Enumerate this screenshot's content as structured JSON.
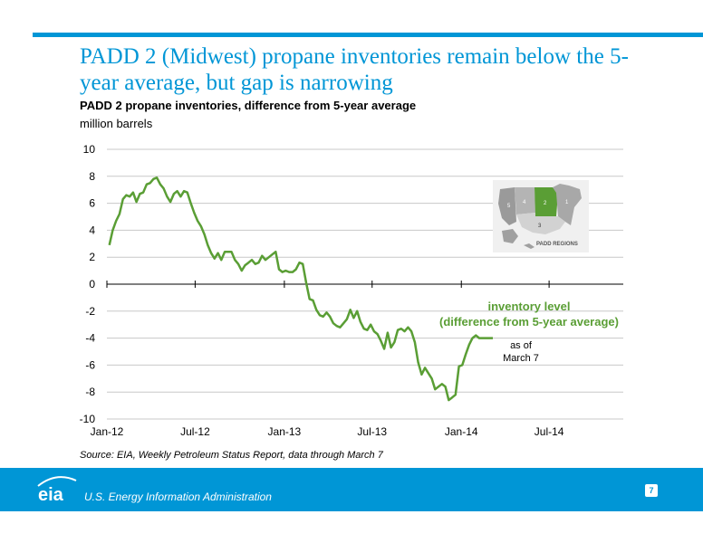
{
  "slide": {
    "title": "PADD 2 (Midwest) propane inventories remain below the 5-year average, but gap is narrowing",
    "source": "Source: EIA, Weekly Petroleum Status Report, data through March 7",
    "footer_agency": "U.S. Energy Information Administration",
    "page_number": "7",
    "logo_text": "eia"
  },
  "map_inset": {
    "label": "PADD REGIONS",
    "regions": [
      {
        "number": "1"
      },
      {
        "number": "2"
      },
      {
        "number": "3"
      },
      {
        "number": "4"
      },
      {
        "number": "5"
      }
    ]
  },
  "colors": {
    "accent": "#0096d6",
    "series": "#5a9e35",
    "grid": "#c8c8c8"
  },
  "chart_data": {
    "type": "line",
    "title": "PADD 2 propane inventories, difference from 5-year average",
    "ylabel": "million barrels",
    "ylim": [
      -10,
      10
    ],
    "yticks": [
      "10",
      "8",
      "6",
      "4",
      "2",
      "0",
      "-2",
      "-4",
      "-6",
      "-8",
      "-10"
    ],
    "xlim": [
      "2012-01",
      "2014-12"
    ],
    "xticks": [
      {
        "label": "Jan-12",
        "date": "2012-01"
      },
      {
        "label": "Jul-12",
        "date": "2012-07"
      },
      {
        "label": "Jan-13",
        "date": "2013-01"
      },
      {
        "label": "Jul-13",
        "date": "2013-07"
      },
      {
        "label": "Jan-14",
        "date": "2014-01"
      },
      {
        "label": "Jul-14",
        "date": "2014-07"
      }
    ],
    "grid": true,
    "series": [
      {
        "name": "inventory level (difference from 5-year average)",
        "dates": [
          "2012-01-06",
          "2012-01-13",
          "2012-01-20",
          "2012-01-27",
          "2012-02-03",
          "2012-02-10",
          "2012-02-17",
          "2012-02-24",
          "2012-03-02",
          "2012-03-09",
          "2012-03-16",
          "2012-03-23",
          "2012-03-30",
          "2012-04-06",
          "2012-04-13",
          "2012-04-20",
          "2012-04-27",
          "2012-05-04",
          "2012-05-11",
          "2012-05-18",
          "2012-05-25",
          "2012-06-01",
          "2012-06-08",
          "2012-06-15",
          "2012-06-22",
          "2012-06-29",
          "2012-07-06",
          "2012-07-13",
          "2012-07-20",
          "2012-07-27",
          "2012-08-03",
          "2012-08-10",
          "2012-08-17",
          "2012-08-24",
          "2012-08-31",
          "2012-09-07",
          "2012-09-14",
          "2012-09-21",
          "2012-09-28",
          "2012-10-05",
          "2012-10-12",
          "2012-10-19",
          "2012-10-26",
          "2012-11-02",
          "2012-11-09",
          "2012-11-16",
          "2012-11-23",
          "2012-11-30",
          "2012-12-07",
          "2012-12-14",
          "2012-12-21",
          "2012-12-28",
          "2013-01-04",
          "2013-01-11",
          "2013-01-18",
          "2013-01-25",
          "2013-02-01",
          "2013-02-08",
          "2013-02-15",
          "2013-02-22",
          "2013-03-01",
          "2013-03-08",
          "2013-03-15",
          "2013-03-22",
          "2013-03-29",
          "2013-04-05",
          "2013-04-12",
          "2013-04-19",
          "2013-04-26",
          "2013-05-03",
          "2013-05-10",
          "2013-05-17",
          "2013-05-24",
          "2013-05-31",
          "2013-06-07",
          "2013-06-14",
          "2013-06-21",
          "2013-06-28",
          "2013-07-05",
          "2013-07-12",
          "2013-07-19",
          "2013-07-26",
          "2013-08-02",
          "2013-08-09",
          "2013-08-16",
          "2013-08-23",
          "2013-08-30",
          "2013-09-06",
          "2013-09-13",
          "2013-09-20",
          "2013-09-27",
          "2013-10-04",
          "2013-10-11",
          "2013-10-18",
          "2013-10-25",
          "2013-11-01",
          "2013-11-08",
          "2013-11-15",
          "2013-11-22",
          "2013-11-29",
          "2013-12-06",
          "2013-12-13",
          "2013-12-20",
          "2013-12-27",
          "2014-01-03",
          "2014-01-10",
          "2014-01-17",
          "2014-01-24",
          "2014-01-31",
          "2014-02-07",
          "2014-02-14",
          "2014-02-21",
          "2014-02-28",
          "2014-03-07"
        ],
        "values": [
          2.9,
          4.0,
          4.7,
          5.2,
          6.3,
          6.6,
          6.5,
          6.8,
          6.1,
          6.7,
          6.8,
          7.4,
          7.5,
          7.8,
          7.9,
          7.4,
          7.1,
          6.5,
          6.1,
          6.7,
          6.9,
          6.5,
          6.9,
          6.8,
          6.0,
          5.3,
          4.7,
          4.3,
          3.7,
          2.9,
          2.3,
          1.9,
          2.3,
          1.8,
          2.4,
          2.4,
          2.4,
          1.8,
          1.5,
          1.0,
          1.4,
          1.6,
          1.8,
          1.5,
          1.6,
          2.1,
          1.8,
          2.0,
          2.2,
          2.4,
          1.1,
          0.9,
          1.0,
          0.9,
          0.9,
          1.1,
          1.6,
          1.5,
          0.1,
          -1.1,
          -1.2,
          -1.9,
          -2.3,
          -2.4,
          -2.1,
          -2.4,
          -2.9,
          -3.1,
          -3.2,
          -2.9,
          -2.6,
          -1.9,
          -2.5,
          -2.0,
          -2.8,
          -3.3,
          -3.4,
          -3.0,
          -3.5,
          -3.7,
          -4.2,
          -4.8,
          -3.6,
          -4.7,
          -4.3,
          -3.4,
          -3.3,
          -3.5,
          -3.2,
          -3.5,
          -4.3,
          -5.8,
          -6.7,
          -6.2,
          -6.6,
          -7.0,
          -7.8,
          -7.6,
          -7.4,
          -7.6,
          -8.6,
          -8.4,
          -8.2,
          -6.1,
          -6.0,
          -5.2,
          -4.5,
          -4.0,
          -3.8,
          -4.0,
          -4.0,
          -4.0,
          -4.0,
          -4.0
        ]
      }
    ],
    "annotations": [
      {
        "line1": "inventory level",
        "line2": "(difference from 5-year average)"
      },
      {
        "line1": "as of",
        "line2": "March 7"
      }
    ]
  }
}
